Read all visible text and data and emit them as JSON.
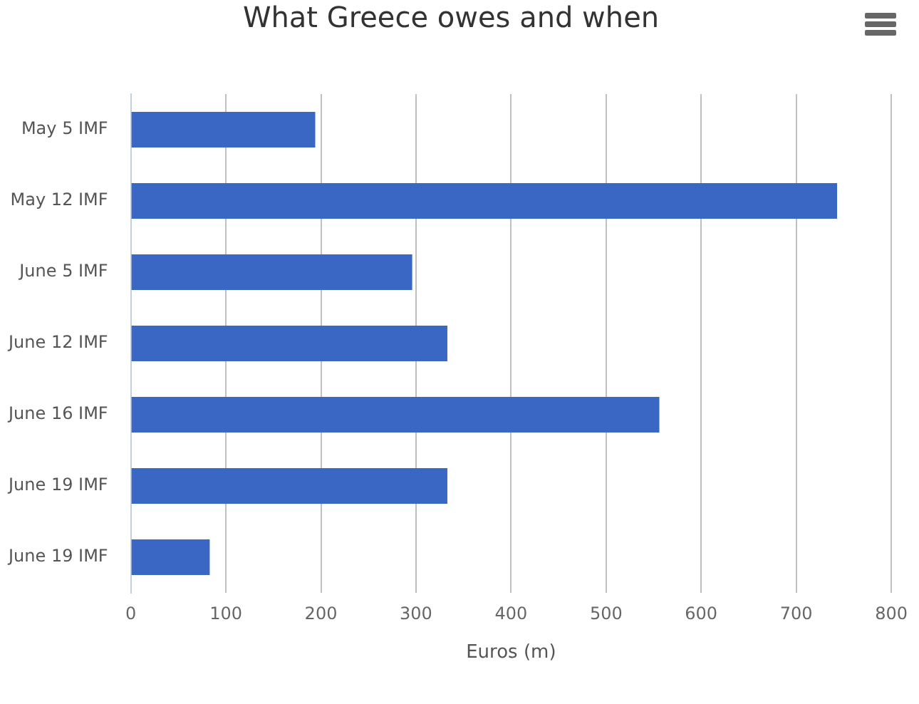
{
  "chart_data": {
    "type": "bar",
    "orientation": "horizontal",
    "title": "What Greece owes and when",
    "xlabel": "Euros (m)",
    "categories": [
      "May 5 IMF",
      "May 12 IMF",
      "June 5 IMF",
      "June 12 IMF",
      "June 16 IMF",
      "June 19 IMF",
      "June 19 IMF"
    ],
    "values": [
      194,
      743,
      296,
      333,
      556,
      333,
      83
    ],
    "color": "#3a66c4",
    "xlim": [
      0,
      800
    ],
    "xticks": [
      0,
      100,
      200,
      300,
      400,
      500,
      600,
      700,
      800
    ],
    "grid": "x",
    "legend": false
  }
}
